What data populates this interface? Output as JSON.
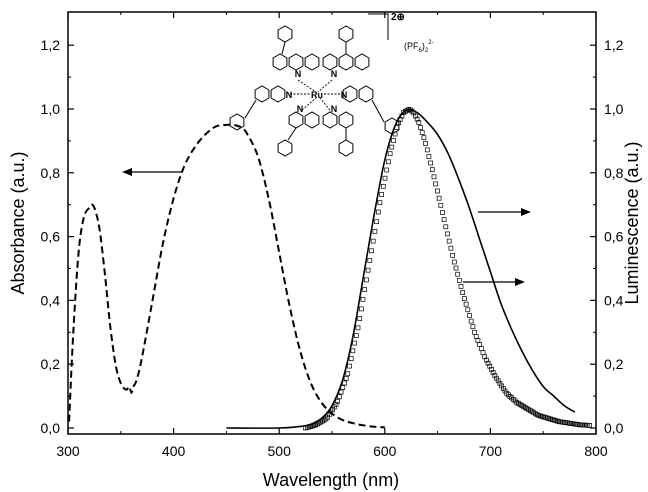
{
  "chart_data": {
    "type": "line",
    "xlabel": "Wavelength (nm)",
    "ylabel_left": "Absorbance (a.u.)",
    "ylabel_right": "Luminescence (a.u.)",
    "xlim": [
      300,
      800
    ],
    "ylim": [
      0,
      1.3
    ],
    "x_ticks": [
      "300",
      "400",
      "500",
      "600",
      "700",
      "800"
    ],
    "y_ticks_left": [
      "0,0",
      "0,2",
      "0,4",
      "0,6",
      "0,8",
      "1,0",
      "1,2"
    ],
    "y_ticks_right": [
      "0,0",
      "0,2",
      "0,4",
      "0,6",
      "0,8",
      "1,0",
      "1,2"
    ],
    "grid": false,
    "annotations": {
      "charge": "2⊕",
      "counterion": "(PF",
      "counterion_sub": "6",
      "counterion_close": ")",
      "counterion_sub2": "2",
      "counterion_sup": "2-",
      "mol_ru": "Ru",
      "mol_n": "N"
    },
    "series": [
      {
        "style": "dashed",
        "axis": "left",
        "x": [
          301,
          305,
          310,
          315,
          320,
          323,
          326,
          330,
          335,
          340,
          345,
          350,
          355,
          358,
          360,
          362,
          365,
          370,
          380,
          390,
          400,
          410,
          420,
          430,
          440,
          450,
          455,
          460,
          465,
          470,
          480,
          490,
          500,
          510,
          520,
          530,
          540,
          550,
          560,
          570,
          580,
          590,
          600
        ],
        "y": [
          0.02,
          0.3,
          0.55,
          0.66,
          0.69,
          0.7,
          0.68,
          0.62,
          0.48,
          0.32,
          0.2,
          0.14,
          0.12,
          0.13,
          0.11,
          0.13,
          0.15,
          0.22,
          0.4,
          0.58,
          0.72,
          0.82,
          0.88,
          0.92,
          0.945,
          0.95,
          0.95,
          0.948,
          0.94,
          0.92,
          0.85,
          0.72,
          0.55,
          0.38,
          0.24,
          0.14,
          0.08,
          0.045,
          0.025,
          0.015,
          0.008,
          0.004,
          0.002
        ]
      },
      {
        "style": "solid",
        "axis": "right",
        "x": [
          450,
          500,
          520,
          530,
          540,
          550,
          560,
          570,
          580,
          590,
          600,
          610,
          620,
          630,
          640,
          650,
          660,
          670,
          680,
          690,
          700,
          710,
          720,
          730,
          740,
          750,
          760,
          770,
          780
        ],
        "y": [
          0.0,
          0.0,
          0.005,
          0.012,
          0.03,
          0.07,
          0.15,
          0.29,
          0.48,
          0.67,
          0.84,
          0.95,
          0.995,
          0.99,
          0.96,
          0.92,
          0.86,
          0.78,
          0.69,
          0.59,
          0.49,
          0.39,
          0.31,
          0.24,
          0.18,
          0.13,
          0.1,
          0.07,
          0.05
        ]
      },
      {
        "style": "square-markers",
        "axis": "right",
        "x": [
          525,
          535,
          545,
          555,
          565,
          575,
          585,
          595,
          605,
          612,
          618,
          623,
          627,
          632,
          638,
          645,
          655,
          665,
          675,
          685,
          695,
          705,
          715,
          725,
          735,
          745,
          755,
          765,
          775,
          785,
          795
        ],
        "y": [
          0.0,
          0.01,
          0.03,
          0.08,
          0.17,
          0.32,
          0.51,
          0.7,
          0.86,
          0.95,
          0.99,
          1.0,
          0.99,
          0.96,
          0.9,
          0.81,
          0.67,
          0.53,
          0.41,
          0.3,
          0.22,
          0.16,
          0.11,
          0.08,
          0.06,
          0.04,
          0.03,
          0.02,
          0.015,
          0.01,
          0.008
        ]
      }
    ]
  }
}
